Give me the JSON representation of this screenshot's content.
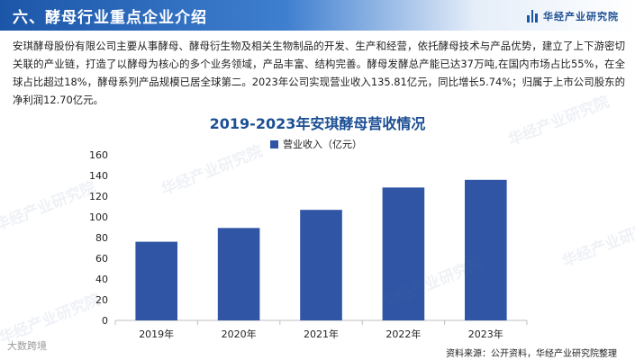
{
  "header": {
    "title": "六、酵母行业重点企业介绍",
    "brand": "华经产业研究院"
  },
  "intro": "安琪酵母股份有限公司主要从事酵母、酵母衍生物及相关生物制品的开发、生产和经营，依托酵母技术与产品优势，建立了上下游密切关联的产业链，打造了以酵母为核心的多个业务领域，产品丰富、结构完善。酵母发酵总产能已达37万吨,在国内市场占比55%，在全球占比超过18%，酵母系列产品规模已居全球第二。2023年公司实现营业收入135.81亿元，同比增长5.74%；归属于上市公司股东的净利润12.70亿元。",
  "colors": {
    "bar": "#2f55a4",
    "accent": "#1c56a8"
  },
  "chart_data": {
    "type": "bar",
    "title": "2019-2023年安琪酵母营收情况",
    "categories": [
      "2019年",
      "2020年",
      "2021年",
      "2022年",
      "2023年"
    ],
    "series": [
      {
        "name": "营业收入（亿元）",
        "values": [
          76.0,
          89.3,
          106.8,
          128.4,
          135.81
        ]
      }
    ],
    "ylim": [
      0,
      160
    ],
    "yticks": [
      0,
      20,
      40,
      60,
      80,
      100,
      120,
      140,
      160
    ],
    "legend": "top-center",
    "grid": false
  },
  "watermarks": [
    "华经产业研究院",
    "华经产业研究院",
    "华经产业研究院",
    "华经产业研究院",
    "华经产业研究院",
    "华经产业研究院"
  ],
  "footer": {
    "source": "资料来源：公开资料，华经产业研究院整理",
    "corner": "大数跨境"
  }
}
